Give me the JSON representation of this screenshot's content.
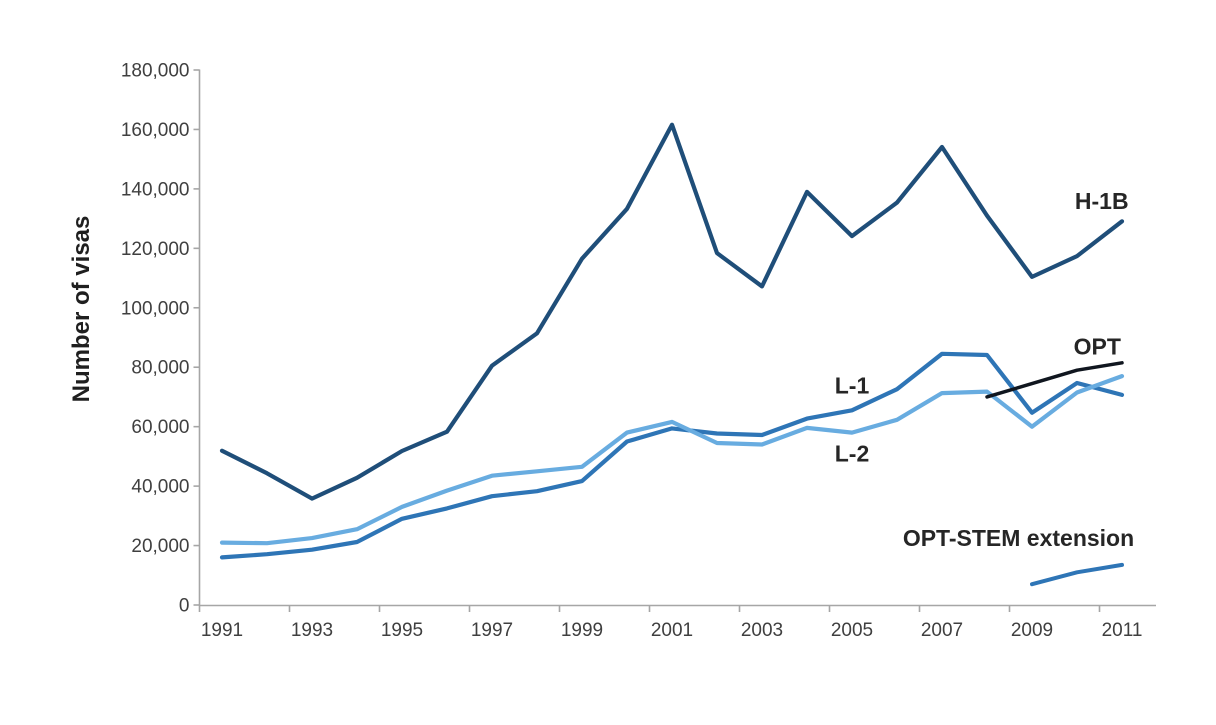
{
  "page": {
    "background": "#ffffff"
  },
  "chart_data": {
    "type": "line",
    "title": "",
    "xlabel": "",
    "ylabel": "Number of visas",
    "x": [
      1991,
      1992,
      1993,
      1994,
      1995,
      1996,
      1997,
      1998,
      1999,
      2000,
      2001,
      2002,
      2003,
      2004,
      2005,
      2006,
      2007,
      2008,
      2009,
      2010,
      2011
    ],
    "xlim": [
      1990.5,
      2011.8
    ],
    "ylim": [
      0,
      180000
    ],
    "grid": false,
    "legend_position": "inline-annotations",
    "axis_color": "#A6A6A6",
    "tick_label_color": "#3F3F3F",
    "annotation_color": "#262626",
    "x_tick_labels": [
      "1991",
      "1993",
      "1995",
      "1997",
      "1999",
      "2001",
      "2003",
      "2005",
      "2007",
      "2009",
      "2011"
    ],
    "y_ticks": [
      0,
      20000,
      40000,
      60000,
      80000,
      100000,
      120000,
      140000,
      160000,
      180000
    ],
    "y_tick_labels": [
      "0",
      "20,000",
      "40,000",
      "60,000",
      "80,000",
      "100,000",
      "120,000",
      "140,000",
      "160,000",
      "180,000"
    ],
    "series": [
      {
        "name": "H-1B",
        "color": "#1F4E79",
        "stroke_width": 4.2,
        "values": [
          51900,
          44300,
          35800,
          42800,
          51800,
          58300,
          80500,
          91400,
          116500,
          133300,
          161600,
          118400,
          107200,
          139000,
          124100,
          135400,
          154100,
          131000,
          110400,
          117400,
          129100
        ]
      },
      {
        "name": "L-1",
        "color": "#2E75B6",
        "stroke_width": 4.2,
        "values": [
          16000,
          17100,
          18600,
          21200,
          29000,
          32500,
          36600,
          38300,
          41700,
          55000,
          59400,
          57700,
          57200,
          62700,
          65500,
          72600,
          84500,
          84100,
          64700,
          74700,
          70700
        ]
      },
      {
        "name": "L-2",
        "color": "#68ACE0",
        "stroke_width": 4.2,
        "values": [
          21000,
          20800,
          22500,
          25500,
          33000,
          38500,
          43500,
          45000,
          46500,
          58000,
          61600,
          54500,
          54000,
          59600,
          58000,
          62300,
          71300,
          71800,
          60000,
          71500,
          77000
        ]
      },
      {
        "name": "OPT",
        "color": "#10161F",
        "stroke_width": 3.5,
        "x": [
          2008,
          2009,
          2010,
          2011
        ],
        "values": [
          70000,
          74500,
          79000,
          81500
        ]
      },
      {
        "name": "OPT-STEM extension",
        "color": "#2E75B6",
        "stroke_width": 4,
        "x": [
          2009,
          2010,
          2011
        ],
        "values": [
          7000,
          11000,
          13500
        ]
      }
    ],
    "annotations": [
      {
        "text": "H-1B",
        "series": "H-1B",
        "x": 2010.55,
        "y": 136000
      },
      {
        "text": "OPT",
        "series": "OPT",
        "x": 2010.45,
        "y": 87000
      },
      {
        "text": "L-1",
        "series": "L-1",
        "x": 2005.0,
        "y": 73800
      },
      {
        "text": "L-2",
        "series": "L-2",
        "x": 2005.0,
        "y": 51000
      },
      {
        "text": "OPT-STEM extension",
        "series": "OPT-STEM extension",
        "x": 2008.7,
        "y": 22500
      }
    ]
  }
}
